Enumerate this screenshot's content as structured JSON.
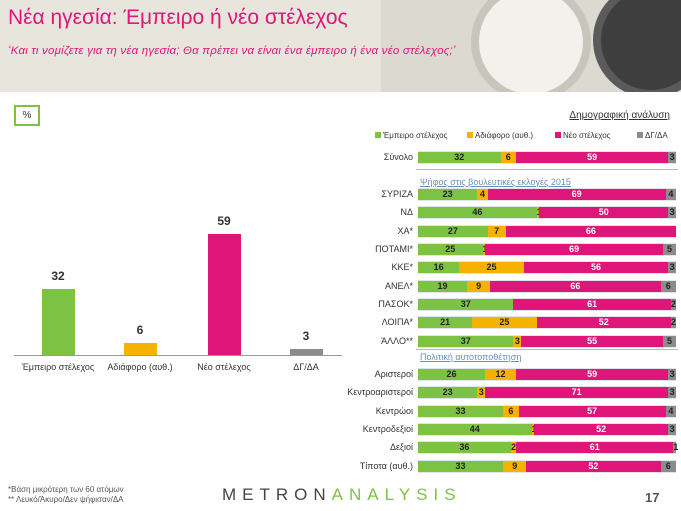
{
  "header": {
    "title": "Νέα ηγεσία: Έμπειρο ή νέο στέλεχος",
    "subtitle": "‘Και τι νομίζετε για τη νέα ηγεσία; Θα πρέπει να είναι ένα έμπειρο ή ένα νέο στέλεχος;’"
  },
  "unit_label": "%",
  "demographics_title": "Δημογραφική ανάλυση",
  "colors": {
    "experienced": "#7cc243",
    "indifferent": "#f5b200",
    "new": "#e0157a",
    "dk": "#8c8c8c"
  },
  "chart_data": [
    {
      "type": "bar",
      "categories": [
        "Έμπειρο στέλεχος",
        "Αδιάφορο (αυθ.)",
        "Νέο στέλεχος",
        "ΔΓ/ΔΑ"
      ],
      "values": [
        32,
        6,
        59,
        3
      ],
      "ylim": [
        0,
        100
      ]
    },
    {
      "type": "bar",
      "stacked": true,
      "orientation": "horizontal",
      "legend": [
        "Έμπειρο στέλεχος",
        "Αδιάφορο (αυθ.)",
        "Νέο στέλεχος",
        "ΔΓ/ΔΑ"
      ],
      "sections": [
        {
          "heading": "",
          "rows": [
            {
              "label": "Σύνολο",
              "values": [
                32,
                6,
                59,
                3
              ]
            }
          ]
        },
        {
          "heading": "Ψήφος στις βουλευτικές εκλογές 2015",
          "rows": [
            {
              "label": "ΣΥΡΙΖΑ",
              "values": [
                23,
                4,
                69,
                4
              ]
            },
            {
              "label": "ΝΔ",
              "values": [
                46,
                1,
                50,
                3
              ]
            },
            {
              "label": "ΧΑ*",
              "values": [
                27,
                7,
                66,
                0
              ]
            },
            {
              "label": "ΠΟΤΑΜΙ*",
              "values": [
                25,
                1,
                69,
                5
              ]
            },
            {
              "label": "ΚΚΕ*",
              "values": [
                16,
                25,
                56,
                3
              ]
            },
            {
              "label": "ΑΝΕΛ*",
              "values": [
                19,
                9,
                66,
                6
              ]
            },
            {
              "label": "ΠΑΣΟΚ*",
              "values": [
                37,
                0,
                61,
                2
              ]
            },
            {
              "label": "ΛΟΙΠΑ*",
              "values": [
                21,
                25,
                52,
                2
              ]
            },
            {
              "label": "ΆΛΛΟ**",
              "values": [
                37,
                3,
                55,
                5
              ]
            }
          ]
        },
        {
          "heading": "Πολιτική αυτοτοποθέτηση",
          "rows": [
            {
              "label": "Αριστεροί",
              "values": [
                26,
                12,
                59,
                3
              ]
            },
            {
              "label": "Κεντροαριστεροί",
              "values": [
                23,
                3,
                71,
                3
              ]
            },
            {
              "label": "Κεντρώοι",
              "values": [
                33,
                6,
                57,
                4
              ]
            },
            {
              "label": "Κεντροδεξιοί",
              "values": [
                44,
                1,
                52,
                3
              ]
            },
            {
              "label": "Δεξιοί",
              "values": [
                36,
                2,
                61,
                1
              ]
            },
            {
              "label": "Τίποτα (αυθ.)",
              "values": [
                33,
                9,
                52,
                6
              ]
            }
          ]
        }
      ],
      "xlim": [
        0,
        100
      ]
    }
  ],
  "footnotes": [
    "*Βάση μικρότερη των 60 ατόμων",
    "** Λευκό/Άκυρο/Δεν ψήφισαν/ΔΑ"
  ],
  "logo": {
    "part1": "METRON",
    "part2": "ANALYSIS"
  },
  "page_number": "17"
}
